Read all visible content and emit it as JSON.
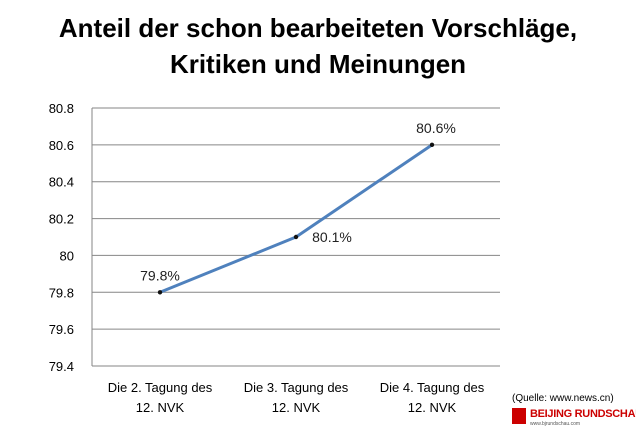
{
  "title_lines": [
    "Anteil der schon bearbeiteten Vorschläge,",
    "Kritiken und Meinungen"
  ],
  "source": "(Quelle: www.news.cn)",
  "logo": {
    "text": "BEIJING RUNDSCHAU",
    "url": "www.bjrundschau.com",
    "color": "#cc0000"
  },
  "chart_data": {
    "type": "line",
    "title": "Anteil der schon bearbeiteten Vorschläge, Kritiken und Meinungen",
    "categories": [
      [
        "Die 2. Tagung des",
        "12. NVK"
      ],
      [
        "Die 3. Tagung des",
        "12. NVK"
      ],
      [
        "Die 4. Tagung des",
        "12. NVK"
      ]
    ],
    "series": [
      {
        "values": [
          79.8,
          80.1,
          80.6
        ],
        "data_labels": [
          "79.8%",
          "80.1%",
          "80.6%"
        ],
        "color": "#4f81bd"
      }
    ],
    "ylim": [
      79.4,
      80.8
    ],
    "yticks": [
      "79.4",
      "79.6",
      "79.8",
      "80",
      "80.2",
      "80.4",
      "80.6",
      "80.8"
    ],
    "grid": true,
    "legend": "none"
  }
}
